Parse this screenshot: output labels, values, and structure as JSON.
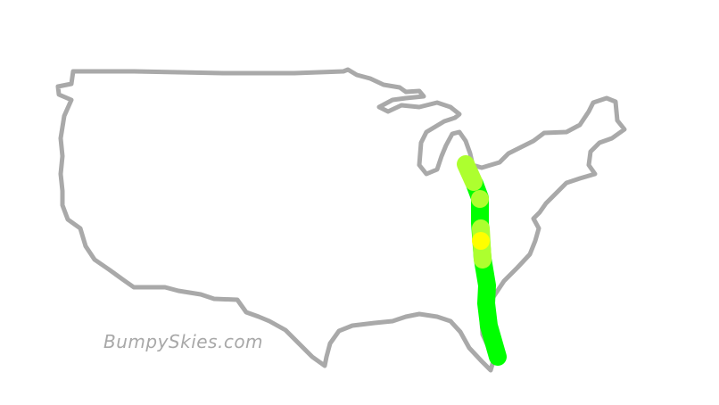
{
  "watermark": "BumpySkies.com",
  "colors": {
    "outline": "#a9a9a9",
    "smooth": "#00ff00",
    "light_turbulence": "#adff2f",
    "moderate_turbulence": "#ffff00"
  },
  "map": {
    "region": "contiguous-united-states",
    "route_segments": [
      {
        "level": "light_turbulence"
      },
      {
        "level": "smooth"
      },
      {
        "level": "light_turbulence"
      },
      {
        "level": "moderate_turbulence"
      },
      {
        "level": "smooth"
      }
    ]
  }
}
